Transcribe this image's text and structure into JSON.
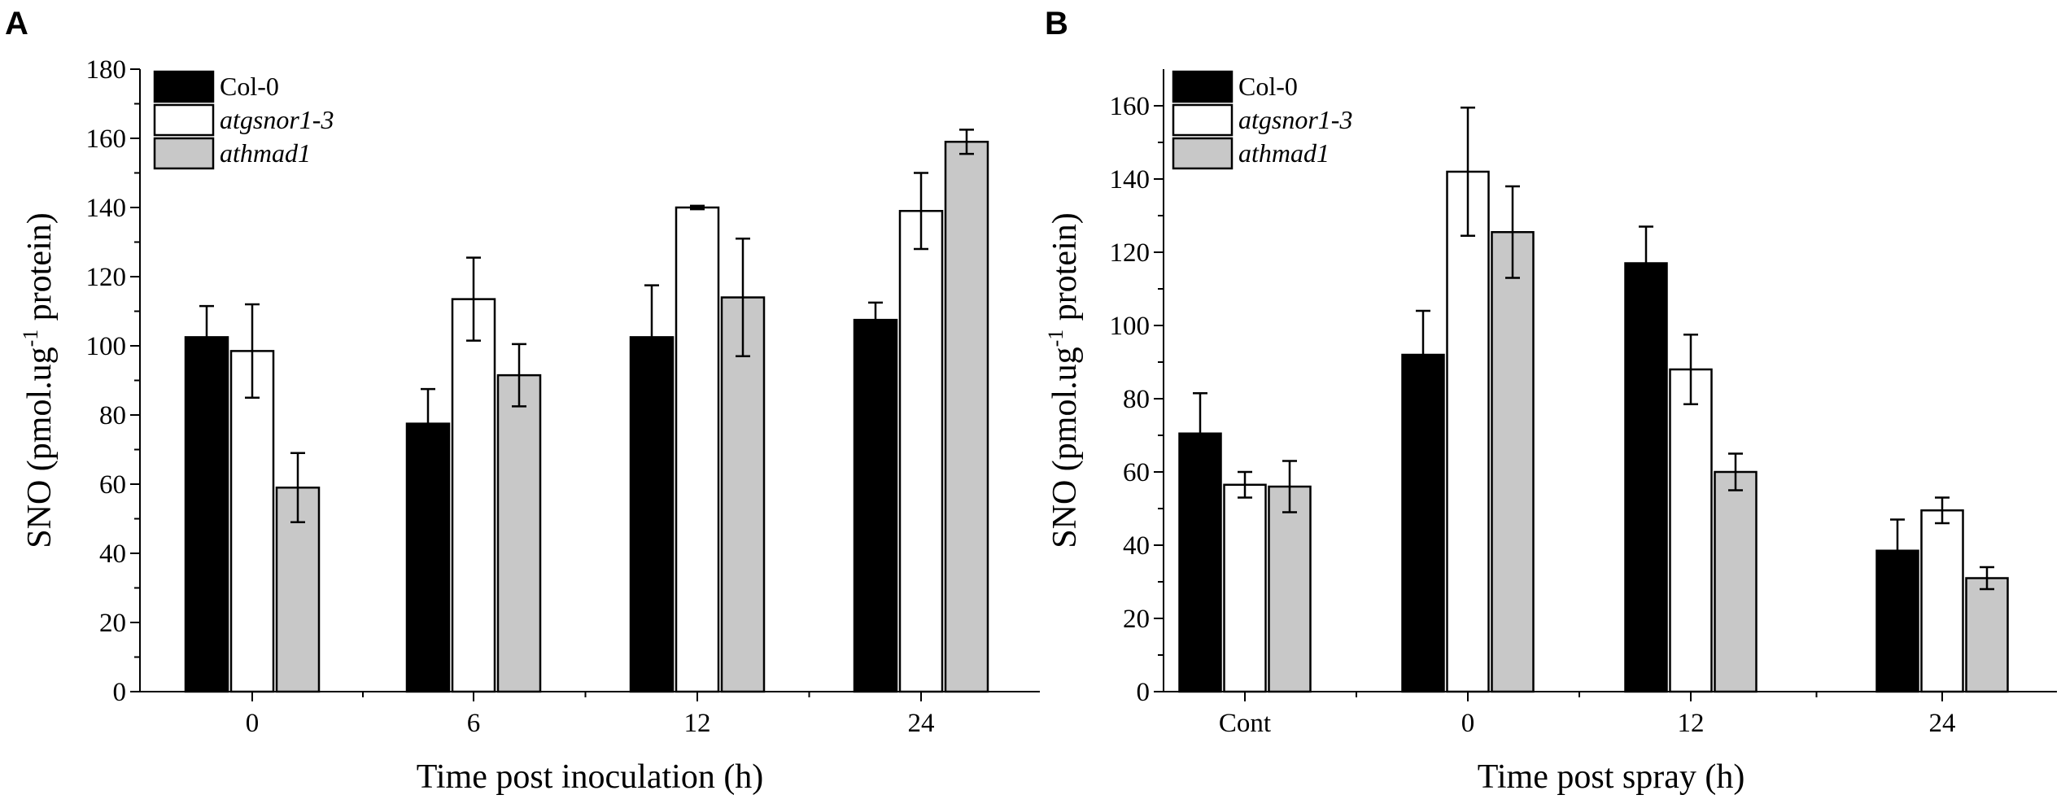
{
  "chart_data": [
    {
      "type": "bar",
      "panel_label": "A",
      "xlabel": "Time post inoculation (h)",
      "ylabel_main": "SNO (pmol.ug",
      "ylabel_sup": "-1",
      "ylabel_end": " protein)",
      "ylim": [
        0,
        180
      ],
      "yticks": [
        0,
        20,
        40,
        60,
        80,
        100,
        120,
        140,
        160,
        180
      ],
      "categories": [
        "0",
        "6",
        "12",
        "24"
      ],
      "series": [
        {
          "name": "Col-0",
          "italic": false,
          "color": "#000000",
          "values": [
            102.5,
            77.5,
            102.5,
            107.5
          ],
          "errors": [
            9,
            10,
            15,
            5
          ]
        },
        {
          "name": "atgsnor1-3",
          "italic": true,
          "color": "#ffffff",
          "values": [
            98.5,
            113.5,
            140,
            139
          ],
          "errors": [
            13.5,
            12,
            0.5,
            11
          ]
        },
        {
          "name": "athmad1",
          "italic": true,
          "color": "#c8c8c8",
          "values": [
            59,
            91.5,
            114,
            159
          ],
          "errors": [
            10,
            9,
            17,
            3.5
          ]
        }
      ],
      "legend_position": "top-left"
    },
    {
      "type": "bar",
      "panel_label": "B",
      "xlabel": "Time post spray (h)",
      "ylabel_main": "SNO (pmol.ug",
      "ylabel_sup": "-1",
      "ylabel_end": " protein)",
      "ylim": [
        0,
        170
      ],
      "yticks": [
        0,
        20,
        40,
        60,
        80,
        100,
        120,
        140,
        160
      ],
      "categories": [
        "Cont",
        "0",
        "12",
        "24"
      ],
      "series": [
        {
          "name": "Col-0",
          "italic": false,
          "color": "#000000",
          "values": [
            70.5,
            92,
            117,
            38.5
          ],
          "errors": [
            11,
            12,
            10,
            8.5
          ]
        },
        {
          "name": "atgsnor1-3",
          "italic": true,
          "color": "#ffffff",
          "values": [
            56.5,
            142,
            88,
            49.5
          ],
          "errors": [
            3.5,
            17.5,
            9.5,
            3.5
          ]
        },
        {
          "name": "athmad1",
          "italic": true,
          "color": "#c8c8c8",
          "values": [
            56,
            125.5,
            60,
            31
          ],
          "errors": [
            7,
            12.5,
            5,
            3
          ]
        }
      ],
      "legend_position": "top-left"
    }
  ]
}
